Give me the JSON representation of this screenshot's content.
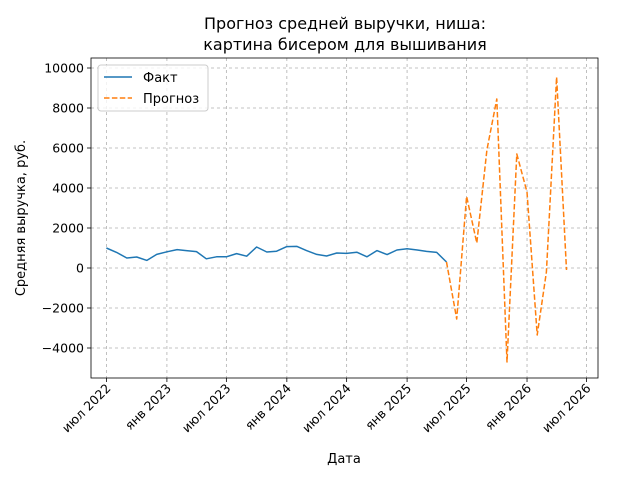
{
  "chart_data": {
    "type": "line",
    "title": [
      "Прогноз средней выручки, ниша:",
      "картина бисером для вышивания"
    ],
    "xlabel": "Дата",
    "ylabel": "Средняя выручка, руб.",
    "ylim": [
      -5500,
      10500
    ],
    "xlim": [
      "2022-05-15",
      "2026-08-05"
    ],
    "y_ticks": [
      -4000,
      -2000,
      0,
      2000,
      4000,
      6000,
      8000,
      10000
    ],
    "x_ticks": [
      {
        "date": "2022-07-01",
        "label": "июл 2022"
      },
      {
        "date": "2023-01-01",
        "label": "янв 2023"
      },
      {
        "date": "2023-07-01",
        "label": "июл 2023"
      },
      {
        "date": "2024-01-01",
        "label": "янв 2024"
      },
      {
        "date": "2024-07-01",
        "label": "июл 2024"
      },
      {
        "date": "2025-01-01",
        "label": "янв 2025"
      },
      {
        "date": "2025-07-01",
        "label": "июл 2025"
      },
      {
        "date": "2026-01-01",
        "label": "янв 2026"
      },
      {
        "date": "2026-07-01",
        "label": "июл 2026"
      }
    ],
    "grid": true,
    "legend_position": "top-left",
    "series": [
      {
        "name": "Факт",
        "color": "#1f77b4",
        "style": "solid",
        "x": [
          "2022-07-01",
          "2022-08-01",
          "2022-09-01",
          "2022-10-01",
          "2022-11-01",
          "2022-12-01",
          "2023-01-01",
          "2023-02-01",
          "2023-03-01",
          "2023-04-01",
          "2023-05-01",
          "2023-06-01",
          "2023-07-01",
          "2023-08-01",
          "2023-09-01",
          "2023-10-01",
          "2023-11-01",
          "2023-12-01",
          "2024-01-01",
          "2024-02-01",
          "2024-03-01",
          "2024-04-01",
          "2024-05-01",
          "2024-06-01",
          "2024-07-01",
          "2024-08-01",
          "2024-09-01",
          "2024-10-01",
          "2024-11-01",
          "2024-12-01",
          "2025-01-01",
          "2025-02-01",
          "2025-03-01",
          "2025-04-01",
          "2025-05-01"
        ],
        "values": [
          1000,
          780,
          500,
          550,
          380,
          680,
          810,
          920,
          870,
          820,
          460,
          560,
          560,
          720,
          590,
          1050,
          800,
          840,
          1070,
          1080,
          870,
          680,
          600,
          750,
          730,
          790,
          560,
          870,
          670,
          900,
          960,
          900,
          830,
          780,
          300
        ]
      },
      {
        "name": "Прогноз",
        "color": "#ff7f0e",
        "style": "dashed",
        "x": [
          "2025-05-01",
          "2025-06-01",
          "2025-07-01",
          "2025-08-01",
          "2025-09-01",
          "2025-10-01",
          "2025-11-01",
          "2025-12-01",
          "2026-01-01",
          "2026-02-01",
          "2026-03-01",
          "2026-04-01",
          "2026-05-01"
        ],
        "values": [
          300,
          -2550,
          3580,
          1250,
          5900,
          8450,
          -4700,
          5700,
          3800,
          -3350,
          -200,
          9550,
          -100
        ]
      }
    ]
  }
}
